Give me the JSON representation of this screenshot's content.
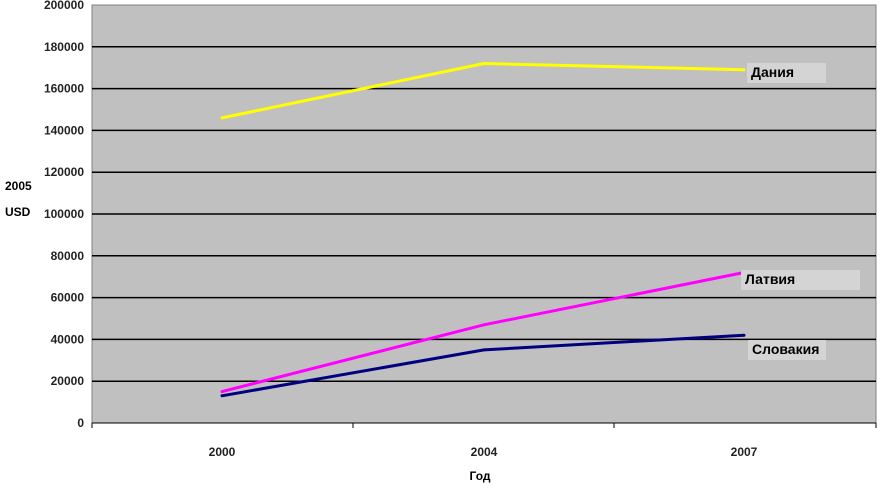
{
  "chart_data": {
    "type": "line",
    "x": [
      "2000",
      "2004",
      "2007"
    ],
    "xlabel": "Год",
    "ylabel_lines": [
      "2005",
      "USD"
    ],
    "ylim": [
      0,
      200000
    ],
    "yticks": [
      "0",
      "20000",
      "40000",
      "60000",
      "80000",
      "100000",
      "120000",
      "140000",
      "160000",
      "180000",
      "200000"
    ],
    "grid": true,
    "series": [
      {
        "name": "Дания",
        "values": [
          146000,
          172000,
          169000
        ],
        "color": "#ffff00"
      },
      {
        "name": "Латвия",
        "values": [
          15000,
          47000,
          72000
        ],
        "color": "#ff00ff"
      },
      {
        "name": "Словакия",
        "values": [
          13000,
          35000,
          42000
        ],
        "color": "#000080"
      }
    ],
    "plot_background": "#c0c0c0"
  }
}
